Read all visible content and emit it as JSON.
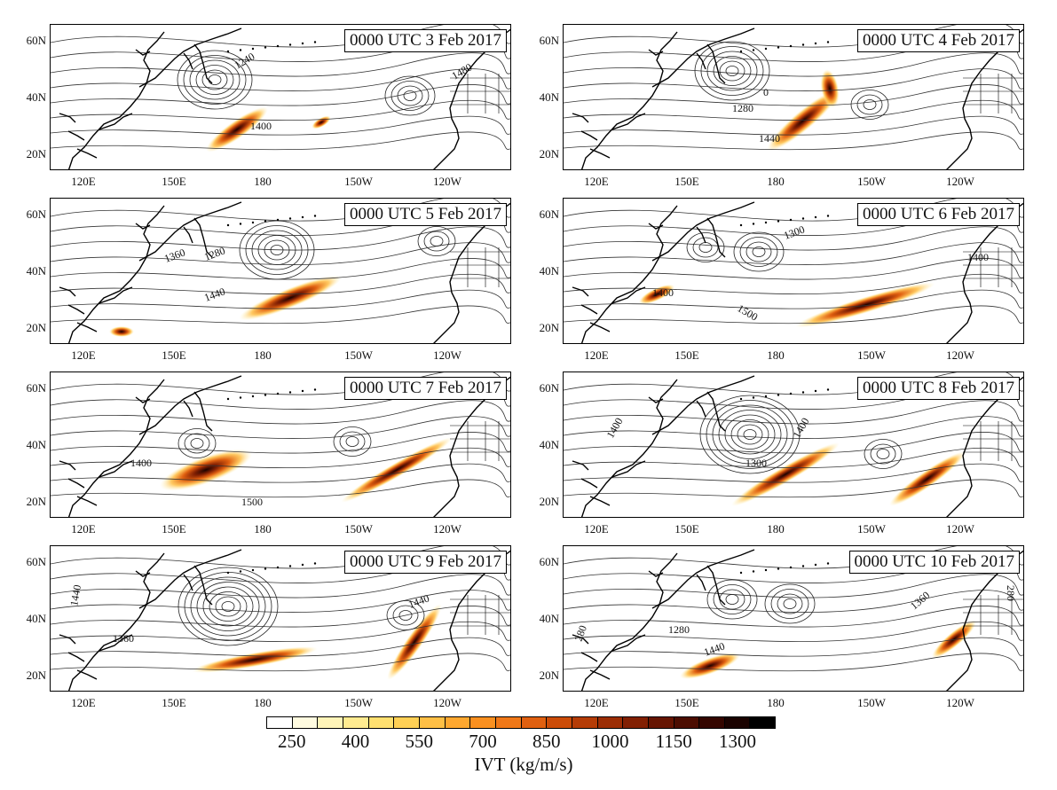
{
  "panels": [
    {
      "title": "0000 UTC 3 Feb 2017",
      "contour_labels": [
        "1240",
        "1400",
        "1480"
      ]
    },
    {
      "title": "0000 UTC 4 Feb 2017",
      "contour_labels": [
        "1280",
        "1440",
        "0"
      ]
    },
    {
      "title": "0000 UTC 5 Feb 2017",
      "contour_labels": [
        "1360",
        "1280",
        "1440"
      ]
    },
    {
      "title": "0000 UTC 6 Feb 2017",
      "contour_labels": [
        "1300",
        "1400",
        "1500",
        "1400"
      ]
    },
    {
      "title": "0000 UTC 7 Feb 2017",
      "contour_labels": [
        "1400",
        "1500"
      ]
    },
    {
      "title": "0000 UTC 8 Feb 2017",
      "contour_labels": [
        "1400",
        "1300",
        "1400"
      ]
    },
    {
      "title": "0000 UTC 9 Feb 2017",
      "contour_labels": [
        "1440",
        "1360",
        "1440"
      ]
    },
    {
      "title": "0000 UTC 10 Feb 2017",
      "contour_labels": [
        "1280",
        "1440",
        "1360",
        "280",
        "280"
      ]
    }
  ],
  "lat_ticks": [
    "60N",
    "40N",
    "20N"
  ],
  "lon_ticks": [
    "120E",
    "150E",
    "180",
    "150W",
    "120W"
  ],
  "colorbar": {
    "title": "IVT (kg/m/s)",
    "tick_labels": [
      "250",
      "400",
      "550",
      "700",
      "850",
      "1000",
      "1150",
      "1300"
    ],
    "colors": [
      "#ffffff",
      "#fffbe0",
      "#fff4b8",
      "#ffeb90",
      "#ffe070",
      "#ffd055",
      "#ffbf45",
      "#ffa830",
      "#fa9020",
      "#f07818",
      "#e06010",
      "#cc4c08",
      "#b53c06",
      "#9c2d04",
      "#822003",
      "#661502",
      "#4c0d01",
      "#340600",
      "#1a0200",
      "#000000"
    ]
  }
}
